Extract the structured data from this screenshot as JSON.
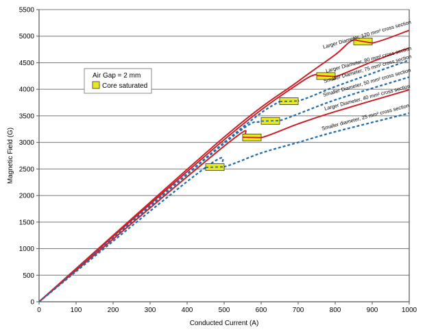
{
  "chart_data": {
    "type": "line",
    "xlabel": "Conducted Current (A)",
    "ylabel": "Magnetic Field (G)",
    "xlim": [
      0,
      1000
    ],
    "ylim": [
      0,
      5500
    ],
    "xticks": [
      0,
      100,
      200,
      300,
      400,
      500,
      600,
      700,
      800,
      900,
      1000
    ],
    "yticks": [
      0,
      500,
      1000,
      1500,
      2000,
      2500,
      3000,
      3500,
      4000,
      4500,
      5000,
      5500
    ],
    "grid": "horizontal",
    "legend": {
      "position": "top-left",
      "title": "Air Gap = 2 mm",
      "entries": [
        {
          "label": "Core saturated",
          "color": "#e8e81e"
        }
      ]
    },
    "colors": {
      "solid": "#cc1f27",
      "dashed": "#1f6fb0",
      "saturation_box": "#e8e81e"
    },
    "series": [
      {
        "name": "Larger Diameter, 120 mm² cross section",
        "style": "solid",
        "x": [
          0,
          500,
          700,
          800,
          850,
          900,
          1000
        ],
        "y": [
          0,
          3100,
          4150,
          4650,
          4930,
          4870,
          5110
        ],
        "saturation": [
          850,
          900
        ]
      },
      {
        "name": "Larger Diameter, 80 mm² cross section",
        "style": "solid",
        "x": [
          0,
          500,
          700,
          760,
          800,
          900,
          1000
        ],
        "y": [
          0,
          3050,
          4100,
          4290,
          4240,
          4520,
          4780
        ],
        "saturation": [
          750,
          800
        ]
      },
      {
        "name": "Smaller Diameter, 75 mm² cross section",
        "style": "dashed",
        "x": [
          0,
          500,
          650,
          700,
          800,
          900,
          1000
        ],
        "y": [
          0,
          3000,
          3770,
          3780,
          4050,
          4300,
          4550
        ],
        "saturation": [
          650,
          700
        ]
      },
      {
        "name": "Smaller Diameter, 50 mm² cross section",
        "style": "dashed",
        "x": [
          0,
          500,
          600,
          650,
          800,
          1000
        ],
        "y": [
          0,
          2980,
          3400,
          3410,
          3800,
          4230
        ],
        "saturation": [
          600,
          650
        ]
      },
      {
        "name": "Larger Diameter, 40 mm² cross section",
        "style": "solid",
        "x": [
          0,
          500,
          560,
          600,
          700,
          800,
          1000
        ],
        "y": [
          0,
          2930,
          3130,
          3090,
          3350,
          3580,
          3990
        ],
        "saturation": [
          550,
          600
        ]
      },
      {
        "name": "Smaller diameter, 25 mm² cross section",
        "style": "dashed",
        "x": [
          0,
          450,
          500,
          600,
          700,
          800,
          1000
        ],
        "y": [
          0,
          2530,
          2540,
          2800,
          3000,
          3200,
          3550
        ],
        "saturation": [
          450,
          500
        ]
      }
    ]
  }
}
